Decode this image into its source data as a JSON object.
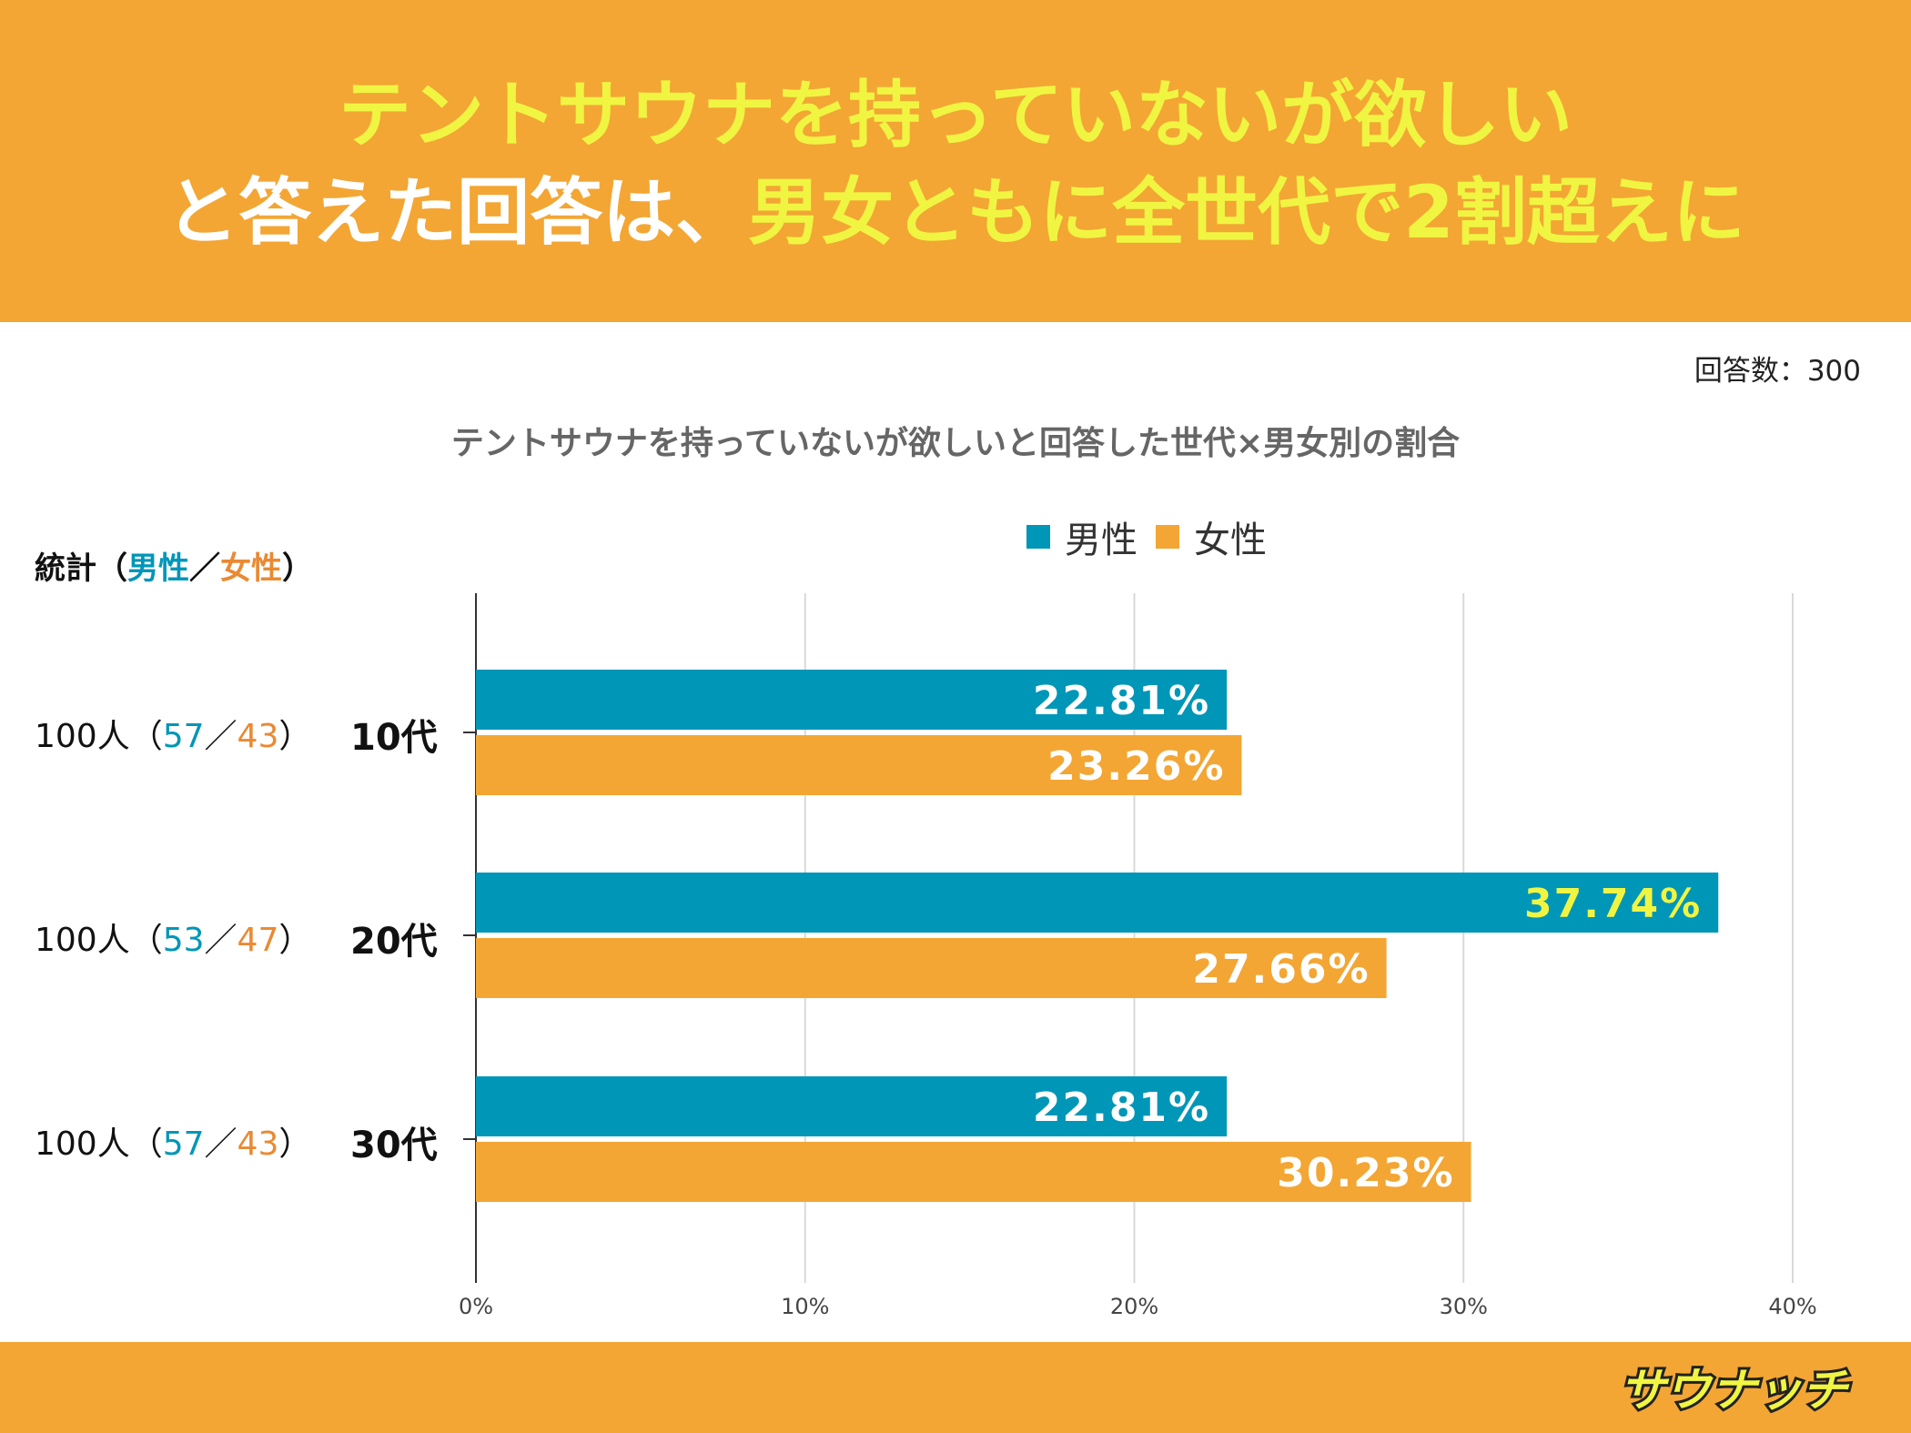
{
  "header": {
    "line1": "テントサウナを持っていないが欲しい",
    "line2_white": "と答えた回答は、",
    "line2_yellow": "男女ともに全世代で2割超えに"
  },
  "response_count": "回答数：300",
  "stats_header": {
    "prefix": "統計（",
    "male": "男性",
    "sep": "／",
    "female": "女性",
    "suffix": "）"
  },
  "rows": [
    {
      "total": "100人（",
      "male": "57",
      "sep": "／",
      "female": "43",
      "close": "）",
      "label": "10代"
    },
    {
      "total": "100人（",
      "male": "53",
      "sep": "／",
      "female": "47",
      "close": "）",
      "label": "20代"
    },
    {
      "total": "100人（",
      "male": "57",
      "sep": "／",
      "female": "43",
      "close": "）",
      "label": "30代"
    }
  ],
  "colors": {
    "male": "#0096b8",
    "female": "#f3a634",
    "highlight_label": "#f0f542",
    "label": "#ffffff"
  },
  "logo_text": "サウナッチ",
  "chart_data": {
    "type": "bar",
    "orientation": "horizontal",
    "title": "テントサウナを持っていないが欲しいと回答した世代×男女別の割合",
    "categories": [
      "10代",
      "20代",
      "30代"
    ],
    "series": [
      {
        "name": "男性",
        "values": [
          22.81,
          37.74,
          22.81
        ],
        "labels": [
          "22.81%",
          "37.74%",
          "22.81%"
        ]
      },
      {
        "name": "女性",
        "values": [
          23.26,
          27.66,
          30.23
        ],
        "labels": [
          "23.26%",
          "27.66%",
          "30.23%"
        ]
      }
    ],
    "highlight": {
      "series": 0,
      "index": 1
    },
    "xlim": [
      0,
      40
    ],
    "xticks": [
      "0%",
      "10%",
      "20%",
      "30%",
      "40%"
    ],
    "grid": true,
    "legend_position": "top"
  }
}
